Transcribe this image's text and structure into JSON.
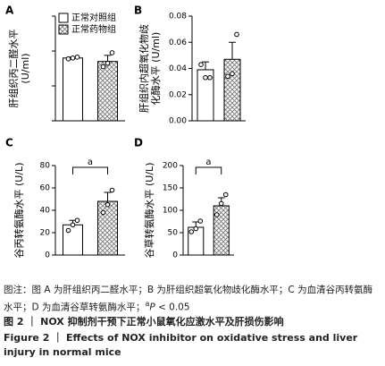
{
  "chart_data": [
    {
      "type": "bar",
      "label": "A",
      "ylabel": [
        "肝组织丙二醛水平",
        "(U/ml)"
      ],
      "ylim": [
        0,
        6
      ],
      "yticks": [
        0,
        2,
        4,
        6
      ],
      "tick_labels": false,
      "legend": true,
      "series": [
        {
          "name": "正常对照组",
          "color": "#ffffff",
          "values": [
            3.6
          ],
          "errors": [
            0.05
          ],
          "points": [
            3.55,
            3.6,
            3.65
          ]
        },
        {
          "name": "正常药物组",
          "color": "#ffffff",
          "pattern": "hatch",
          "values": [
            3.4
          ],
          "errors": [
            0.35
          ],
          "points": [
            3.1,
            3.3,
            3.9
          ]
        }
      ]
    },
    {
      "type": "bar",
      "label": "B",
      "ylabel": [
        "肝组织内超氧化物歧",
        "化酶水平 (U/ml)"
      ],
      "ylim": [
        0,
        0.08
      ],
      "yticks": [
        {
          "value": 0,
          "label": "0.00"
        },
        {
          "value": 0.02,
          "label": "0.02"
        },
        {
          "value": 0.04,
          "label": "0.04"
        },
        {
          "value": 0.06,
          "label": "0.06"
        },
        {
          "value": 0.08,
          "label": "0.08"
        }
      ],
      "series": [
        {
          "color": "#ffffff",
          "values": [
            0.039
          ],
          "errors": [
            0.006
          ],
          "points": [
            0.043,
            0.033,
            0.033
          ]
        },
        {
          "color": "#ffffff",
          "pattern": "hatch",
          "values": [
            0.047
          ],
          "errors": [
            0.013
          ],
          "points": [
            0.034,
            0.036,
            0.066
          ]
        }
      ]
    },
    {
      "type": "bar",
      "label": "C",
      "ylabel": [
        "谷丙转氨酶水平 (U/L)"
      ],
      "ylim": [
        0,
        80
      ],
      "yticks": [
        0,
        20,
        40,
        60,
        80
      ],
      "annotation": "a",
      "series": [
        {
          "color": "#ffffff",
          "values": [
            27
          ],
          "errors": [
            4
          ],
          "points": [
            22,
            27,
            31
          ]
        },
        {
          "color": "#ffffff",
          "pattern": "hatch",
          "values": [
            48
          ],
          "errors": [
            8
          ],
          "points": [
            38,
            45,
            58
          ]
        }
      ]
    },
    {
      "type": "bar",
      "label": "D",
      "ylabel": [
        "谷草转氨酶水平 (U/L)"
      ],
      "ylim": [
        0,
        200
      ],
      "yticks": [
        0,
        50,
        100,
        150,
        200
      ],
      "annotation": "a",
      "series": [
        {
          "color": "#ffffff",
          "values": [
            62
          ],
          "errors": [
            12
          ],
          "points": [
            52,
            59,
            76
          ]
        },
        {
          "color": "#ffffff",
          "pattern": "hatch",
          "values": [
            110
          ],
          "errors": [
            18
          ],
          "points": [
            90,
            115,
            135
          ]
        }
      ]
    }
  ],
  "caption": {
    "note": "图注：图 A 为肝组织丙二醛水平；B 为肝组织超氧化物歧化酶水平；C 为血清谷丙转氨酶水平；D 为血清谷草转氨酶水平；",
    "sig": "a",
    "p": "P",
    "p_rest": " < 0.05"
  },
  "figure_title": {
    "cn": "图 2 ｜ NOX 抑制剂干预下正常小鼠氧化应激水平及肝损伤影响",
    "en": "Figure 2 ｜ Effects of NOX inhibitor on oxidative stress and liver injury in normal mice"
  }
}
